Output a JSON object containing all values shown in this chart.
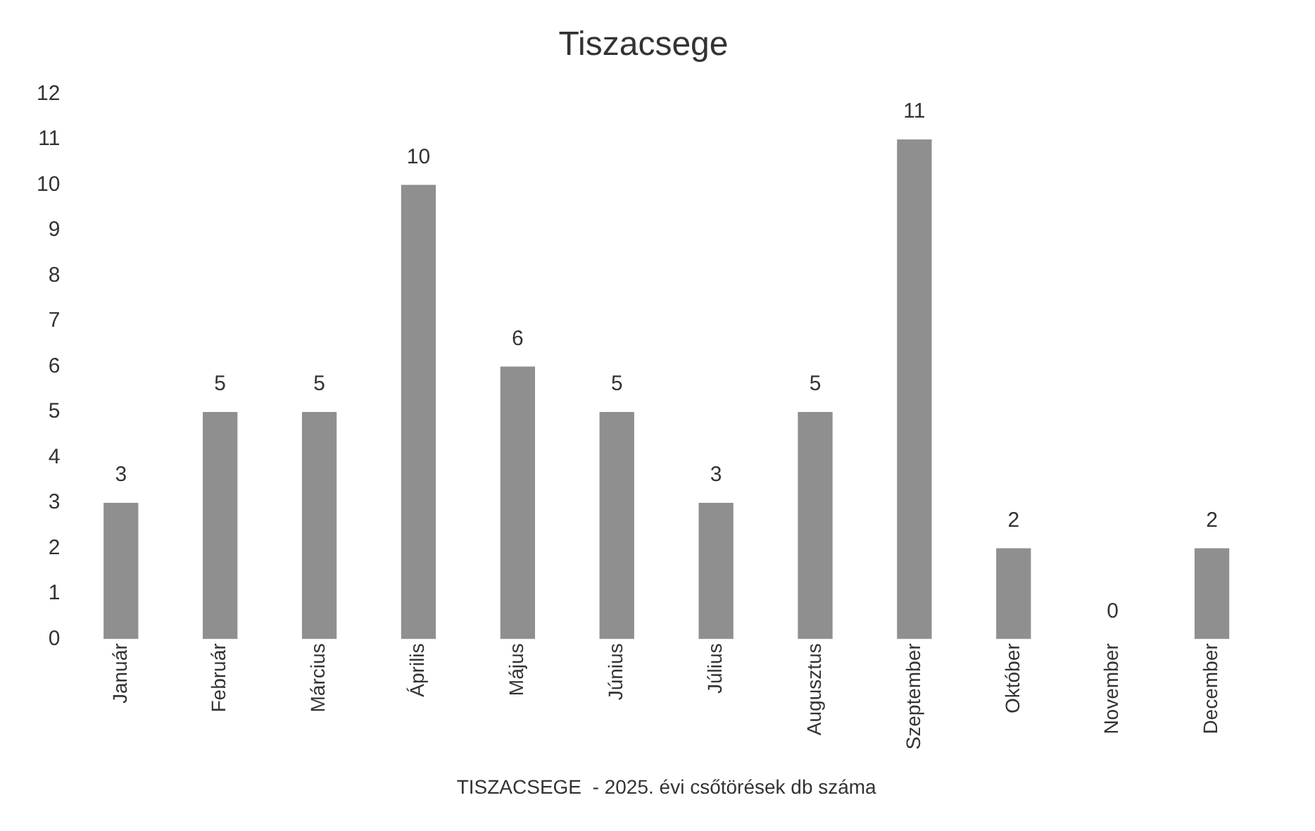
{
  "chart_data": {
    "type": "bar",
    "title": "Tiszacsege",
    "xlabel": "TISZACSEGE  - 2025. évi csőtörések db száma",
    "categories": [
      "Január",
      "Február",
      "Március",
      "Április",
      "Május",
      "Június",
      "Július",
      "Augusztus",
      "Szeptember",
      "Október",
      "November",
      "December"
    ],
    "values": [
      3,
      5,
      5,
      10,
      6,
      5,
      3,
      5,
      11,
      2,
      0,
      2
    ],
    "color": "#8f8f8f",
    "ylim": [
      0,
      12
    ],
    "yticks": [
      0,
      1,
      2,
      3,
      4,
      5,
      6,
      7,
      8,
      9,
      10,
      11,
      12
    ],
    "grid": false,
    "legend": false,
    "data_labels": true
  }
}
